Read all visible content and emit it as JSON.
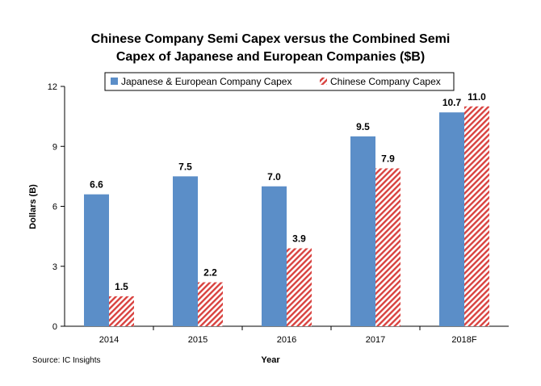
{
  "chart_data": {
    "type": "bar",
    "title_lines": [
      "Chinese Company Semi Capex versus the Combined Semi",
      "Capex of Japanese and European Companies ($B)"
    ],
    "xlabel": "Year",
    "ylabel": "Dollars (B)",
    "categories": [
      "2014",
      "2015",
      "2016",
      "2017",
      "2018F"
    ],
    "series": [
      {
        "name": "Japanese & European Company Capex",
        "values": [
          6.6,
          7.5,
          7.0,
          9.5,
          10.7
        ],
        "labels": [
          "6.6",
          "7.5",
          "7.0",
          "9.5",
          "10.7"
        ],
        "color": "#5b8ec8",
        "style": "solid"
      },
      {
        "name": "Chinese Company Capex",
        "values": [
          1.5,
          2.2,
          3.9,
          7.9,
          11.0
        ],
        "labels": [
          "1.5",
          "2.2",
          "3.9",
          "7.9",
          "11.0"
        ],
        "color": "#d9423f",
        "style": "hatched"
      }
    ],
    "ylim": [
      0,
      12
    ],
    "yticks": [
      "0",
      "3",
      "6",
      "9",
      "12"
    ],
    "legend_position": "top",
    "grid": false,
    "source": "Source: IC Insights"
  }
}
